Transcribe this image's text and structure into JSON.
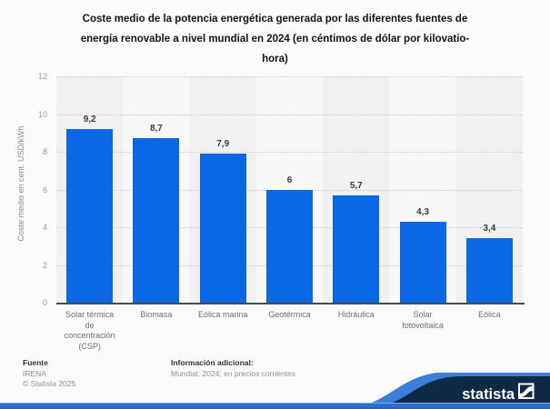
{
  "title": {
    "text": "Coste medio de la potencia energética generada por las diferentes fuentes de energía renovable a nivel mundial en 2024 (en céntimos de dólar por kilovatio-hora)",
    "lines": [
      "Coste medio de la potencia energética generada por las diferentes fuentes de",
      "energía renovable a nivel mundial en 2024 (en céntimos de dólar por kilovatio-",
      "hora)"
    ]
  },
  "chart_data": {
    "type": "bar",
    "title": "Coste medio de la potencia energética generada por las diferentes fuentes de energía renovable a nivel mundial en 2024 (en céntimos de dólar por kilovatio-hora)",
    "categories": [
      "Solar térmica de concentración (CSP)",
      "Biomasa",
      "Eólica marina",
      "Geotérmica",
      "Hidráulica",
      "Solar fotovoltaica",
      "Eólica"
    ],
    "category_lines": [
      [
        "Solar térmica",
        "de",
        "concentración",
        "(CSP)"
      ],
      [
        "Biomasa"
      ],
      [
        "Eólica marina"
      ],
      [
        "Geotérmica"
      ],
      [
        "Hidráulica"
      ],
      [
        "Solar",
        "fotovoltaica"
      ],
      [
        "Eólica"
      ]
    ],
    "values": [
      9.2,
      8.7,
      7.9,
      6,
      5.7,
      4.3,
      3.4
    ],
    "value_labels": [
      "9,2",
      "8,7",
      "7,9",
      "6",
      "5,7",
      "4,3",
      "3,4"
    ],
    "xlabel": "",
    "ylabel": "Coste medio en cent. USD/kWh",
    "ylim": [
      0,
      12
    ],
    "yticks": [
      0,
      2,
      4,
      6,
      8,
      10,
      12
    ],
    "grid": "horizontal-dotted",
    "legend": "none",
    "bar_color": "#0b68e4",
    "band_color_dark": "#f1f1f2",
    "band_color_light": "#f8f8f9"
  },
  "footer": {
    "source_label": "Fuente",
    "source": "IRENA",
    "copyright": "© Statista 2025",
    "info_label": "Información adicional:",
    "info": "Mundial; 2024; en precios corrientes"
  },
  "branding": {
    "logo_text": "statista",
    "navy": "#0e2a44",
    "swoosh_blue": "#3b7fd8",
    "stripe_blue": "#2e6ecd"
  }
}
